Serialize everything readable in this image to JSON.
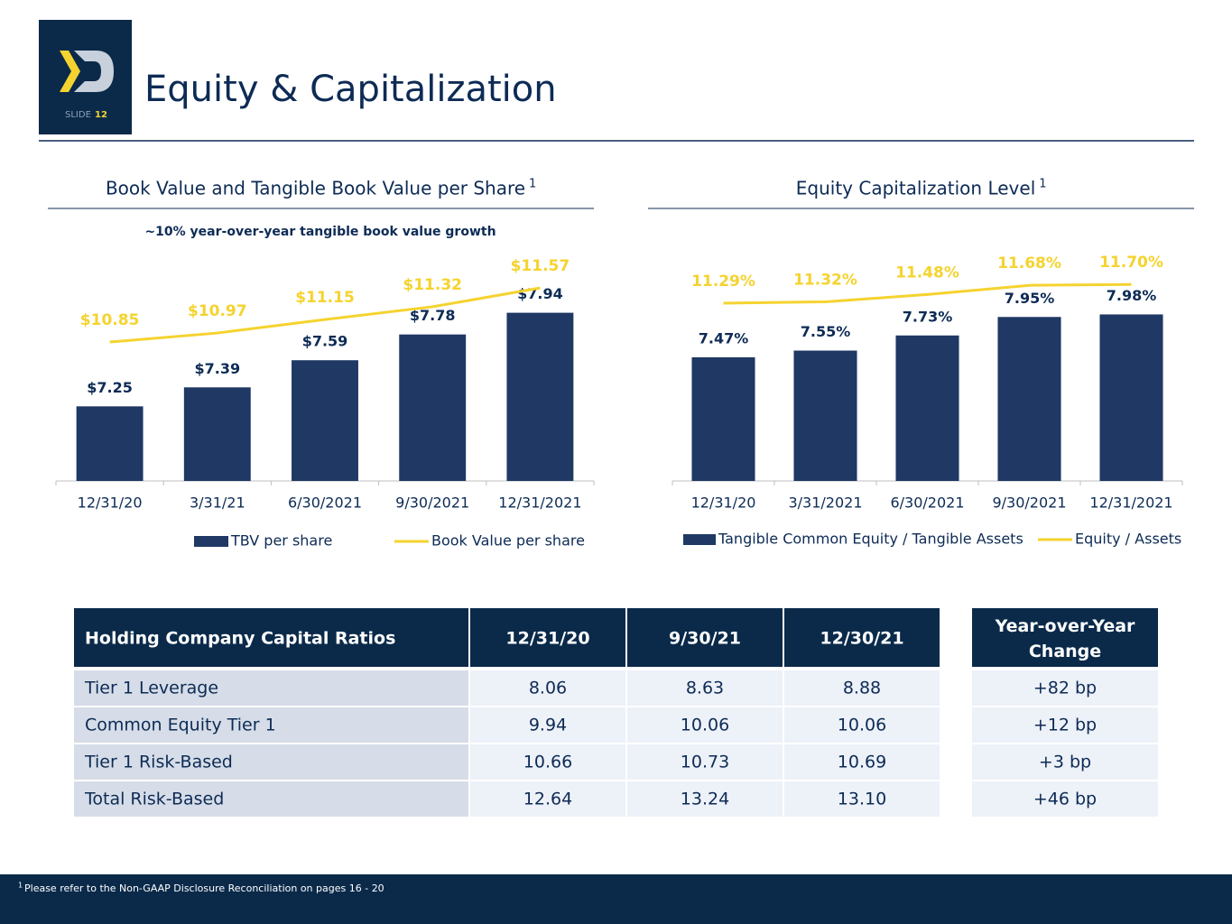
{
  "header": {
    "slide_label": "SLIDE",
    "slide_number": "12",
    "title": "Equity & Capitalization"
  },
  "chart_data": [
    {
      "type": "bar",
      "title": "Book Value and Tangible Book Value per Share",
      "title_footnote": "1",
      "annotation": "~10% year-over-year tangible book value growth",
      "categories": [
        "12/31/20",
        "3/31/21",
        "6/30/2021",
        "9/30/2021",
        "12/31/2021"
      ],
      "ylim": [
        6.7,
        8.25
      ],
      "y2lim": [
        9.0,
        11.8
      ],
      "series": [
        {
          "name": "TBV per share",
          "type": "bar",
          "color": "#1f3864",
          "values": [
            7.25,
            7.39,
            7.59,
            7.78,
            7.94
          ],
          "value_labels": [
            "$7.25",
            "$7.39",
            "$7.59",
            "$7.78",
            "$7.94"
          ]
        },
        {
          "name": "Book Value per share",
          "type": "line",
          "axis": "y2",
          "color": "#f5d32f",
          "values": [
            10.85,
            10.97,
            11.15,
            11.32,
            11.57
          ],
          "value_labels": [
            "$10.85",
            "$10.97",
            "$11.15",
            "$11.32",
            "$11.57"
          ]
        }
      ]
    },
    {
      "type": "bar",
      "title": "Equity Capitalization Level",
      "title_footnote": "1",
      "categories": [
        "12/31/20",
        "3/31/2021",
        "6/30/2021",
        "9/30/2021",
        "12/31/2021"
      ],
      "ylim": [
        6.0,
        8.5
      ],
      "y2lim": [
        7.4,
        12.0
      ],
      "series": [
        {
          "name": "Tangible Common Equity / Tangible Assets",
          "type": "bar",
          "color": "#1f3864",
          "values": [
            7.47,
            7.55,
            7.73,
            7.95,
            7.98
          ],
          "value_labels": [
            "7.47%",
            "7.55%",
            "7.73%",
            "7.95%",
            "7.98%"
          ]
        },
        {
          "name": "Equity / Assets",
          "type": "line",
          "axis": "y2",
          "color": "#f5d32f",
          "values": [
            11.29,
            11.32,
            11.48,
            11.68,
            11.7
          ],
          "value_labels": [
            "11.29%",
            "11.32%",
            "11.48%",
            "11.68%",
            "11.70%"
          ]
        }
      ]
    }
  ],
  "table": {
    "header": [
      "Holding Company Capital Ratios",
      "12/31/20",
      "9/30/21",
      "12/30/21",
      "Year-over-Year Change"
    ],
    "rows": [
      [
        "Tier 1 Leverage",
        "8.06",
        "8.63",
        "8.88",
        "+82 bp"
      ],
      [
        "Common Equity Tier 1",
        "9.94",
        "10.06",
        "10.06",
        "+12 bp"
      ],
      [
        "Tier 1 Risk-Based",
        "10.66",
        "10.73",
        "10.69",
        "+3 bp"
      ],
      [
        "Total Risk-Based",
        "12.64",
        "13.24",
        "13.10",
        "+46 bp"
      ]
    ]
  },
  "footnote": {
    "marker": "1",
    "text": "Please refer to the Non-GAAP Disclosure Reconciliation on pages 16 - 20"
  }
}
